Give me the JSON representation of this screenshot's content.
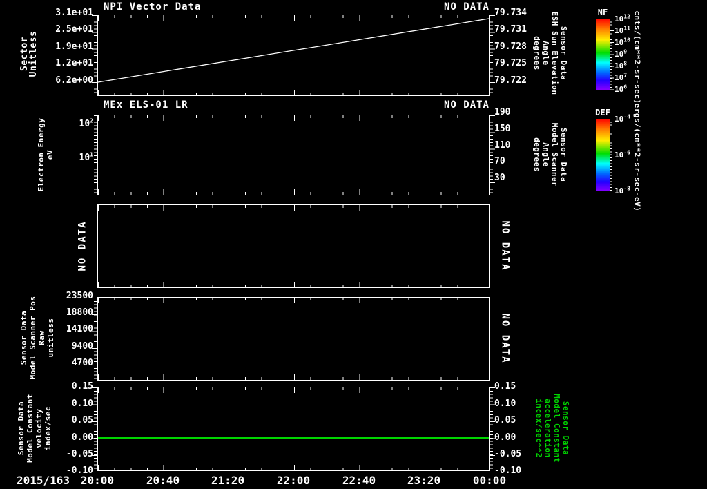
{
  "colors": {
    "background": "#000000",
    "foreground": "#ffffff",
    "green_accent": "#00d400"
  },
  "panels": [
    {
      "title": "NPI Vector Data",
      "status": "NO DATA",
      "left_title": "Sector\nUnitless",
      "left_ticks": [
        "3.1e+01",
        "2.5e+01",
        "1.9e+01",
        "1.2e+01",
        "6.2e+00"
      ],
      "right_title": "Sensor Data\nESH Sun Elevation\nAngle\ndegrees",
      "right_ticks": [
        "79.734",
        "79.731",
        "79.728",
        "79.725",
        "79.722"
      ]
    },
    {
      "title": "MEx ELS-01 LR",
      "status": "NO DATA",
      "left_title": "Electron Energy\neV",
      "left_ticks": [
        "10^2",
        "10^1"
      ],
      "right_title": "Sensor Data\nModel Scanner\nAngle\ndegrees",
      "right_ticks": [
        "190",
        "150",
        "110",
        "70",
        "30"
      ]
    },
    {
      "left_no_data": "NO DATA",
      "right_no_data": "NO DATA"
    },
    {
      "left_title": "Sensor Data\nModel Scanner Pos\nRaw\nunitless",
      "left_ticks": [
        "23500",
        "18800",
        "14100",
        "9400",
        "4700"
      ],
      "right_no_data": "NO DATA"
    },
    {
      "left_title": "Sensor Data\nModel Constant\nvelocity\nindex/sec",
      "left_ticks": [
        "0.15",
        "0.10",
        "0.05",
        "0.00",
        "-0.05",
        "-0.10"
      ],
      "right_title": "Sensor Data\nModel Constant\nacceleration\nincex/sec**2",
      "right_ticks": [
        "0.15",
        "0.10",
        "0.05",
        "0.00",
        "-0.05",
        "-0.10"
      ]
    }
  ],
  "colorbars": [
    {
      "name": "NF",
      "ticks": [
        "10^12",
        "10^11",
        "10^10",
        "10^9",
        "10^8",
        "10^7",
        "10^6"
      ],
      "units": "cnts/(cm**2-sr-sec)"
    },
    {
      "name": "DEF",
      "ticks": [
        "10^-4",
        "10^-6",
        "10^-8"
      ],
      "units": "ergs/(cm**2-sr-sec-eV)"
    }
  ],
  "xaxis": {
    "date": "2015/163",
    "ticks": [
      "20:00",
      "20:40",
      "21:20",
      "22:00",
      "22:40",
      "23:20",
      "00:00"
    ]
  },
  "chart_data": [
    {
      "type": "line",
      "title": "NPI Vector Data",
      "status": "NO DATA",
      "ylabel": "Sector Unitless",
      "yticks": [
        6.2,
        12.4,
        18.6,
        24.8,
        31.0
      ],
      "series": [
        {
          "name": "sector",
          "color": "#ffffff",
          "x": [
            "20:00",
            "00:00"
          ],
          "y": [
            5.5,
            30.7
          ],
          "shape": "linear ramp"
        }
      ],
      "right_axis": {
        "label": "Sensor Data ESH Sun Elevation Angle degrees",
        "ticks": [
          79.722,
          79.725,
          79.728,
          79.731,
          79.734
        ]
      },
      "colorbar": {
        "name": "NF",
        "scale": "log",
        "range_exponents": [
          6,
          12
        ],
        "units": "cnts/(cm**2-sr-sec)"
      }
    },
    {
      "type": "line",
      "title": "MEx ELS-01 LR",
      "status": "NO DATA",
      "ylabel": "Electron Energy eV",
      "yscale": "log",
      "yticks": [
        10,
        100
      ],
      "series": [
        {
          "name": "baseline",
          "color": "#ffffff",
          "y_constant": 2,
          "shape": "flat line near bottom"
        }
      ],
      "right_axis": {
        "label": "Sensor Data Model Scanner Angle degrees",
        "ticks": [
          30,
          70,
          110,
          150,
          190
        ]
      },
      "colorbar": {
        "name": "DEF",
        "scale": "log",
        "range_exponents": [
          -8,
          -4
        ],
        "units": "ergs/(cm**2-sr-sec-eV)"
      }
    },
    {
      "type": "empty",
      "status": "NO DATA",
      "series": []
    },
    {
      "type": "empty",
      "status": "NO DATA",
      "ylabel": "Sensor Data Model Scanner Pos Raw unitless",
      "yticks": [
        4700,
        9400,
        14100,
        18800,
        23500
      ],
      "series": []
    },
    {
      "type": "line",
      "ylabel": "Sensor Data Model Constant velocity index/sec",
      "ylim": [
        -0.1,
        0.15
      ],
      "yticks": [
        -0.1,
        -0.05,
        0.0,
        0.05,
        0.1,
        0.15
      ],
      "series": [
        {
          "name": "velocity",
          "color": "#00d400",
          "y_constant": 0.0,
          "shape": "flat line"
        }
      ],
      "right_axis": {
        "label": "Sensor Data Model Constant acceleration incex/sec**2",
        "ticks": [
          -0.1,
          -0.05,
          0.0,
          0.05,
          0.1,
          0.15
        ]
      }
    }
  ],
  "x_categories": [
    "20:00",
    "20:40",
    "21:20",
    "22:00",
    "22:40",
    "23:20",
    "00:00"
  ],
  "x_start_date": "2015/163"
}
